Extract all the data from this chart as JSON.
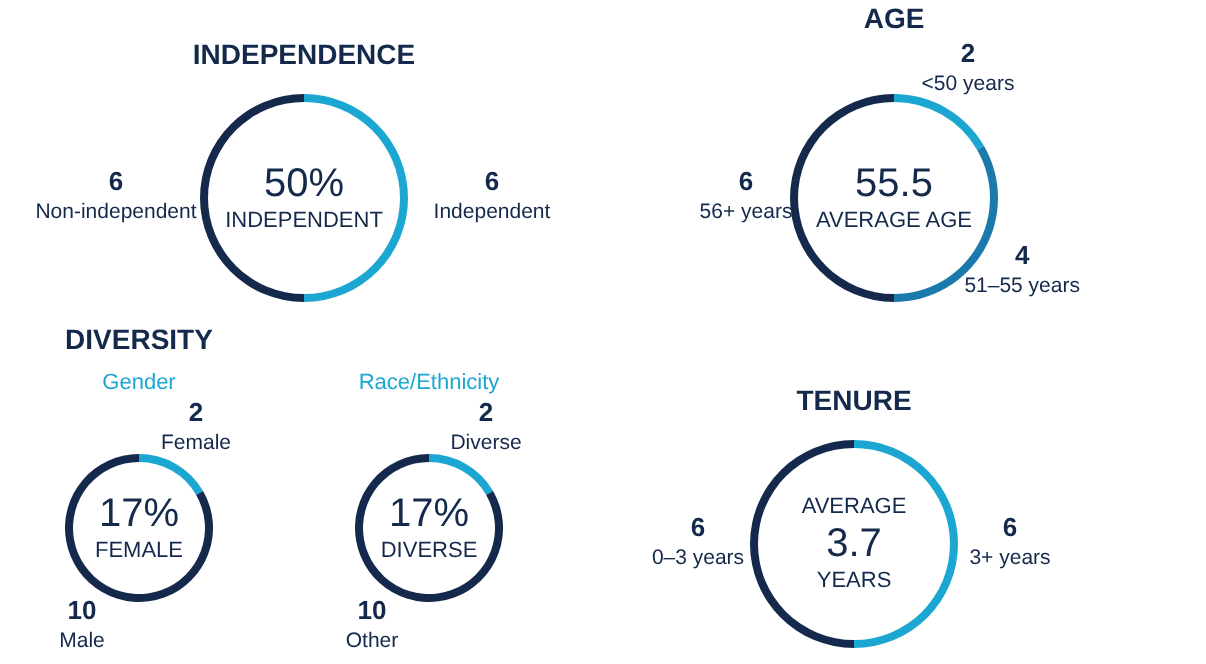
{
  "chart_data": [
    {
      "type": "donut",
      "title": "INDEPENDENCE",
      "categories": [
        "Independent",
        "Non-independent"
      ],
      "values": [
        6,
        6
      ],
      "colors": [
        "#1ba7d1",
        "#14294b"
      ],
      "data_labels": true,
      "legend": false,
      "annotations": [
        "50%",
        "INDEPENDENT"
      ]
    },
    {
      "type": "donut",
      "title": "AGE",
      "categories": [
        "<50 years",
        "51–55 years",
        "56+ years"
      ],
      "values": [
        2,
        4,
        6
      ],
      "colors": [
        "#1ba7d1",
        "#1b7aab",
        "#14294b"
      ],
      "data_labels": true,
      "legend": false,
      "annotations": [
        "55.5",
        "AVERAGE AGE"
      ]
    },
    {
      "type": "donut",
      "title": "DIVERSITY",
      "subtitle": "Gender",
      "categories": [
        "Female",
        "Male"
      ],
      "values": [
        2,
        10
      ],
      "colors": [
        "#1ba7d1",
        "#14294b"
      ],
      "data_labels": true,
      "legend": false,
      "annotations": [
        "17%",
        "FEMALE"
      ]
    },
    {
      "type": "donut",
      "subtitle": "Race/Ethnicity",
      "categories": [
        "Diverse",
        "Other"
      ],
      "values": [
        2,
        10
      ],
      "colors": [
        "#1ba7d1",
        "#14294b"
      ],
      "data_labels": true,
      "legend": false,
      "annotations": [
        "17%",
        "DIVERSE"
      ]
    },
    {
      "type": "donut",
      "title": "TENURE",
      "categories": [
        "3+ years",
        "0–3 years"
      ],
      "values": [
        6,
        6
      ],
      "colors": [
        "#1ba7d1",
        "#14294b"
      ],
      "data_labels": true,
      "legend": false,
      "annotations": [
        "AVERAGE",
        "3.7",
        "YEARS"
      ]
    }
  ]
}
